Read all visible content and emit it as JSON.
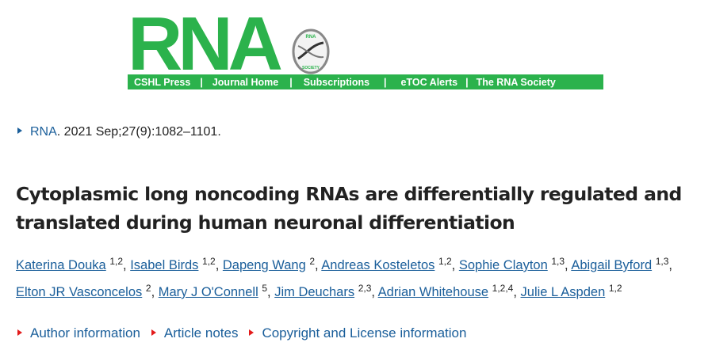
{
  "header": {
    "logo_text": "RNA",
    "seal_text_top": "RNA",
    "seal_text_bottom": "SOCIETY",
    "brand_color": "#2bb24c",
    "nav": [
      "CSHL Press",
      "Journal Home",
      "Subscriptions",
      "eTOC Alerts",
      "The RNA Society"
    ],
    "separator": "|"
  },
  "citation": {
    "journal": "RNA",
    "details": ". 2021 Sep;27(9):1082–1101."
  },
  "article": {
    "title": "Cytoplasmic long noncoding RNAs are differentially regulated and translated during human neuronal differentiation",
    "authors": [
      {
        "name": "Katerina Douka",
        "aff": "1,2"
      },
      {
        "name": "Isabel Birds",
        "aff": "1,2"
      },
      {
        "name": "Dapeng Wang",
        "aff": "2"
      },
      {
        "name": "Andreas Kosteletos",
        "aff": "1,2"
      },
      {
        "name": "Sophie Clayton",
        "aff": "1,3"
      },
      {
        "name": "Abigail Byford",
        "aff": "1,3"
      },
      {
        "name": "Elton JR Vasconcelos",
        "aff": "2"
      },
      {
        "name": "Mary J O'Connell",
        "aff": "5"
      },
      {
        "name": "Jim Deuchars",
        "aff": "2,3"
      },
      {
        "name": "Adrian Whitehouse",
        "aff": "1,2,4"
      },
      {
        "name": "Julie L Aspden",
        "aff": "1,2"
      }
    ]
  },
  "notes": [
    "Author information",
    "Article notes",
    "Copyright and License information"
  ],
  "colors": {
    "link": "#1a5e9a",
    "expander_red": "#e31b1b"
  }
}
